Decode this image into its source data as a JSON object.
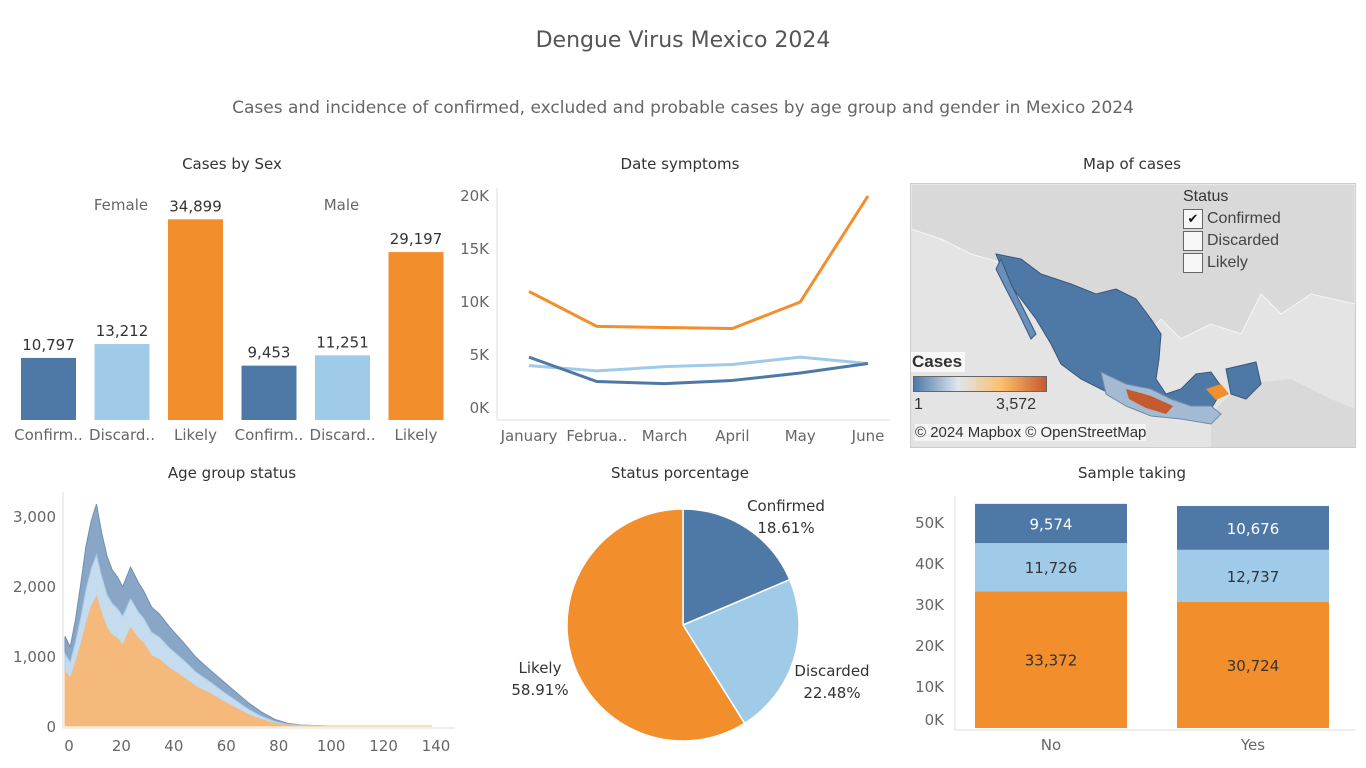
{
  "title": "Dengue Virus Mexico 2024",
  "subtitle": "Cases and incidence of confirmed, excluded and probable cases by age group and gender in Mexico 2024",
  "colors": {
    "confirmed": "#4e79a7",
    "discarded": "#a0cbe8",
    "likely": "#f28e2b"
  },
  "panels": {
    "cases_by_sex": {
      "title": "Cases by Sex"
    },
    "date_symptoms": {
      "title": "Date symptoms"
    },
    "map": {
      "title": "Map of cases",
      "legend_title": "Status",
      "legend_items": [
        {
          "label": "Confirmed",
          "checked": "✔"
        },
        {
          "label": "Discarded",
          "checked": ""
        },
        {
          "label": "Likely",
          "checked": ""
        }
      ],
      "scale_title": "Cases",
      "scale_min": "1",
      "scale_max": "3,572",
      "attribution": "© 2024 Mapbox © OpenStreetMap"
    },
    "age_group": {
      "title": "Age group status"
    },
    "status_pct": {
      "title": "Status porcentage"
    },
    "sample_taking": {
      "title": "Sample taking"
    }
  },
  "chart_data": [
    {
      "id": "cases_by_sex",
      "type": "bar",
      "title": "Cases by Sex",
      "groups": [
        "Female",
        "Male"
      ],
      "categories": [
        "Confirm..",
        "Discard..",
        "Likely"
      ],
      "series": [
        {
          "group": "Female",
          "values": [
            10797,
            13212,
            34899
          ],
          "labels": [
            "10,797",
            "13,212",
            "34,899"
          ]
        },
        {
          "group": "Male",
          "values": [
            9453,
            11251,
            29197
          ],
          "labels": [
            "9,453",
            "11,251",
            "29,197"
          ]
        }
      ]
    },
    {
      "id": "date_symptoms",
      "type": "line",
      "title": "Date symptoms",
      "x": [
        "January",
        "Februa..",
        "March",
        "April",
        "May",
        "June"
      ],
      "ylim": [
        0,
        20000
      ],
      "yticks": [
        "0K",
        "5K",
        "10K",
        "15K",
        "20K"
      ],
      "series": [
        {
          "key": "likely",
          "values": [
            11000,
            7700,
            7600,
            7500,
            10000,
            20000
          ]
        },
        {
          "key": "discarded",
          "values": [
            4000,
            3500,
            3900,
            4100,
            4800,
            4200
          ]
        },
        {
          "key": "confirmed",
          "values": [
            4800,
            2500,
            2300,
            2600,
            3300,
            4200
          ]
        }
      ]
    },
    {
      "id": "age_group",
      "type": "area",
      "title": "Age group status",
      "xlim": [
        0,
        140
      ],
      "xticks": [
        "0",
        "20",
        "40",
        "60",
        "80",
        "100",
        "120",
        "140"
      ],
      "ylim": [
        0,
        3000
      ],
      "yticks": [
        "0",
        "1,000",
        "2,000",
        "3,000"
      ],
      "x": [
        0,
        2,
        4,
        6,
        8,
        10,
        12,
        14,
        16,
        18,
        20,
        22,
        25,
        28,
        30,
        33,
        36,
        40,
        45,
        50,
        55,
        60,
        65,
        70,
        75,
        80,
        85,
        90,
        95,
        100,
        110,
        120,
        140
      ],
      "series": [
        {
          "key": "likely",
          "values": [
            780,
            680,
            900,
            1150,
            1450,
            1700,
            1850,
            1600,
            1400,
            1300,
            1250,
            1150,
            1400,
            1250,
            1180,
            1000,
            950,
            820,
            700,
            560,
            470,
            360,
            260,
            160,
            90,
            40,
            15,
            5,
            2,
            0,
            0,
            0,
            0
          ]
        },
        {
          "key": "discarded",
          "values": [
            250,
            230,
            300,
            400,
            500,
            550,
            600,
            540,
            480,
            450,
            430,
            420,
            420,
            380,
            360,
            340,
            320,
            290,
            250,
            210,
            170,
            140,
            110,
            80,
            50,
            25,
            10,
            5,
            3,
            0,
            0,
            0,
            0
          ]
        },
        {
          "key": "confirmed",
          "values": [
            250,
            220,
            320,
            480,
            620,
            680,
            720,
            620,
            550,
            480,
            450,
            420,
            450,
            420,
            390,
            360,
            330,
            300,
            250,
            210,
            170,
            150,
            120,
            90,
            60,
            30,
            12,
            5,
            2,
            0,
            0,
            0,
            0
          ]
        }
      ]
    },
    {
      "id": "status_pct",
      "type": "pie",
      "title": "Status porcentage",
      "slices": [
        {
          "key": "confirmed",
          "name": "Confirmed",
          "value": 18.61,
          "label": "18.61%"
        },
        {
          "key": "discarded",
          "name": "Discarded",
          "value": 22.48,
          "label": "22.48%"
        },
        {
          "key": "likely",
          "name": "Likely",
          "value": 58.91,
          "label": "58.91%"
        }
      ]
    },
    {
      "id": "sample_taking",
      "type": "bar",
      "stacked": true,
      "title": "Sample taking",
      "categories": [
        "No",
        "Yes"
      ],
      "ylim": [
        0,
        55000
      ],
      "yticks": [
        "0K",
        "10K",
        "20K",
        "30K",
        "40K",
        "50K"
      ],
      "series": [
        {
          "key": "likely",
          "values": [
            33372,
            30724
          ],
          "labels": [
            "33,372",
            "30,724"
          ]
        },
        {
          "key": "discarded",
          "values": [
            11726,
            12737
          ],
          "labels": [
            "11,726",
            "12,737"
          ]
        },
        {
          "key": "confirmed",
          "values": [
            9574,
            10676
          ],
          "labels": [
            "9,574",
            "10,676"
          ]
        }
      ]
    }
  ]
}
